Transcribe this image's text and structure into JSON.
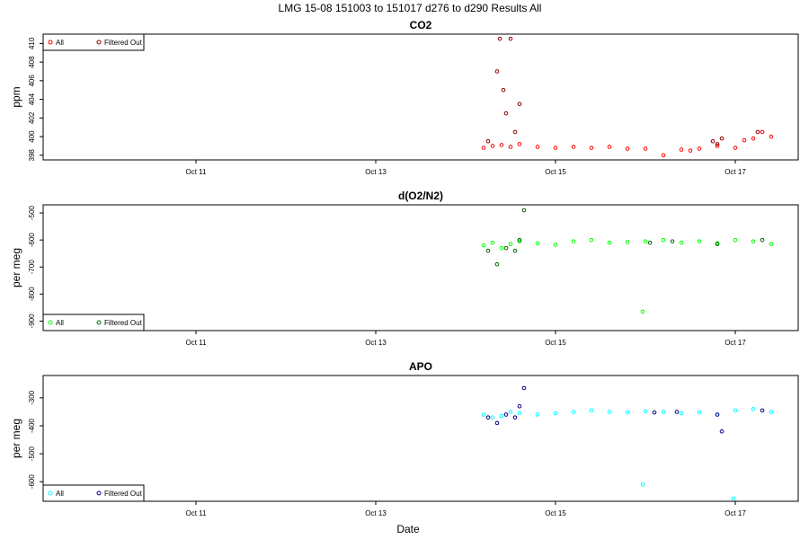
{
  "title": "LMG   15-08    151003 to 151017    d276 to d290   Results All",
  "xlabel": "Date",
  "chart_data": [
    {
      "type": "scatter",
      "title": "CO2",
      "ylabel": "ppm",
      "xlim": [
        9.3,
        17.7
      ],
      "ylim": [
        397.5,
        411
      ],
      "yticks": [
        398,
        400,
        402,
        404,
        406,
        408,
        410
      ],
      "xticks": [
        11,
        13,
        15,
        17
      ],
      "xticklabels": [
        "Oct 11",
        "Oct 13",
        "Oct 15",
        "Oct 17"
      ],
      "legend": [
        "All",
        "Filtered Out"
      ],
      "legend_position": "top-left",
      "colors": {
        "all": "#ff0000",
        "filtered": "#8b0000"
      },
      "series": [
        {
          "name": "All",
          "x": [
            14.2,
            14.3,
            14.4,
            14.5,
            14.6,
            14.8,
            15.0,
            15.2,
            15.4,
            15.6,
            15.8,
            16.0,
            16.2,
            16.4,
            16.5,
            16.6,
            16.8,
            17.0,
            17.1,
            17.2,
            17.3,
            17.4
          ],
          "y": [
            398.8,
            399.0,
            399.1,
            398.9,
            399.2,
            398.9,
            398.8,
            398.9,
            398.8,
            398.9,
            398.7,
            398.7,
            398.0,
            398.6,
            398.5,
            398.7,
            399.0,
            398.8,
            399.6,
            399.8,
            400.5,
            400.0
          ]
        },
        {
          "name": "Filtered Out",
          "x": [
            14.25,
            14.35,
            14.38,
            14.42,
            14.45,
            14.5,
            14.55,
            14.6,
            16.75,
            16.8,
            16.85,
            17.25
          ],
          "y": [
            399.5,
            407.0,
            410.5,
            405.0,
            402.5,
            410.5,
            400.5,
            403.5,
            399.5,
            399.2,
            399.8,
            400.5
          ]
        }
      ]
    },
    {
      "type": "scatter",
      "title": "d(O2/N2)",
      "ylabel": "per meg",
      "xlim": [
        9.3,
        17.7
      ],
      "ylim": [
        -935,
        -470
      ],
      "yticks": [
        -900,
        -800,
        -700,
        -600,
        -500
      ],
      "xticks": [
        11,
        13,
        15,
        17
      ],
      "xticklabels": [
        "Oct 11",
        "Oct 13",
        "Oct 15",
        "Oct 17"
      ],
      "legend": [
        "All",
        "Filtered Out"
      ],
      "legend_position": "bottom-left",
      "colors": {
        "all": "#00ff00",
        "filtered": "#006400"
      },
      "series": [
        {
          "name": "All",
          "x": [
            14.2,
            14.3,
            14.4,
            14.5,
            14.6,
            14.8,
            15.0,
            15.2,
            15.4,
            15.6,
            15.8,
            15.97,
            16.0,
            16.2,
            16.4,
            16.6,
            16.8,
            17.0,
            17.2,
            17.4
          ],
          "y": [
            -620,
            -610,
            -630,
            -615,
            -605,
            -612,
            -618,
            -605,
            -600,
            -610,
            -608,
            -865,
            -605,
            -600,
            -610,
            -605,
            -612,
            -600,
            -605,
            -615
          ]
        },
        {
          "name": "Filtered Out",
          "x": [
            14.25,
            14.35,
            14.45,
            14.55,
            14.6,
            14.65,
            16.05,
            16.3,
            16.8,
            17.3
          ],
          "y": [
            -640,
            -690,
            -630,
            -640,
            -600,
            -490,
            -610,
            -605,
            -615,
            -600
          ]
        }
      ]
    },
    {
      "type": "scatter",
      "title": "APO",
      "ylabel": "per meg",
      "xlim": [
        9.3,
        17.7
      ],
      "ylim": [
        -670,
        -220
      ],
      "yticks": [
        -600,
        -500,
        -400,
        -300
      ],
      "xticks": [
        11,
        13,
        15,
        17
      ],
      "xticklabels": [
        "Oct 11",
        "Oct 13",
        "Oct 15",
        "Oct 17"
      ],
      "legend": [
        "All",
        "Filtered Out"
      ],
      "legend_position": "bottom-left",
      "colors": {
        "all": "#00ffff",
        "filtered": "#00008b"
      },
      "series": [
        {
          "name": "All",
          "x": [
            14.2,
            14.3,
            14.4,
            14.5,
            14.6,
            14.8,
            15.0,
            15.2,
            15.4,
            15.6,
            15.8,
            15.97,
            16.0,
            16.2,
            16.4,
            16.6,
            16.8,
            16.98,
            17.0,
            17.2,
            17.4
          ],
          "y": [
            -360,
            -370,
            -365,
            -350,
            -355,
            -360,
            -355,
            -350,
            -345,
            -350,
            -352,
            -610,
            -348,
            -350,
            -355,
            -352,
            -360,
            -660,
            -345,
            -340,
            -350
          ]
        },
        {
          "name": "Filtered Out",
          "x": [
            14.25,
            14.35,
            14.45,
            14.55,
            14.6,
            14.65,
            16.1,
            16.35,
            16.8,
            16.85,
            17.3
          ],
          "y": [
            -370,
            -390,
            -360,
            -370,
            -330,
            -265,
            -352,
            -350,
            -360,
            -420,
            -345
          ]
        }
      ]
    }
  ]
}
